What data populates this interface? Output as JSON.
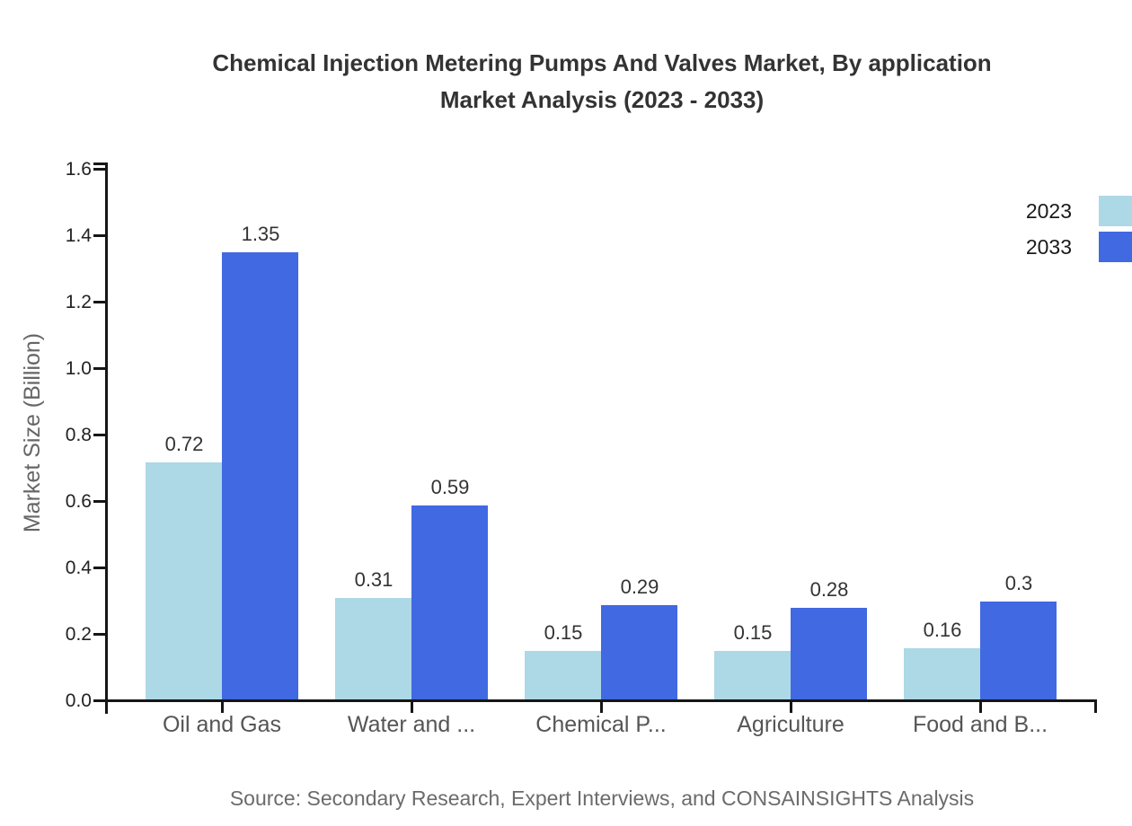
{
  "title": {
    "line1": "Chemical Injection Metering Pumps And Valves Market, By application",
    "line2": "Market Analysis (2023 - 2033)"
  },
  "source": "Source: Secondary Research, Expert Interviews, and CONSAINSIGHTS Analysis",
  "colors": {
    "series_2023": "#add8e6",
    "series_2033": "#4169e1",
    "axis": "#161616",
    "title_text": "#333333",
    "category_text": "#555555",
    "muted_text": "#666666"
  },
  "chart_data": {
    "type": "bar",
    "title": "Chemical Injection Metering Pumps And Valves Market, By application Market Analysis (2023 - 2033)",
    "categories": [
      "Oil and Gas",
      "Water and ...",
      "Chemical P...",
      "Agriculture",
      "Food and B..."
    ],
    "series": [
      {
        "name": "2023",
        "color": "#add8e6",
        "values": [
          0.72,
          0.31,
          0.15,
          0.15,
          0.16
        ]
      },
      {
        "name": "2033",
        "color": "#4169e1",
        "values": [
          1.35,
          0.59,
          0.29,
          0.28,
          0.3
        ]
      }
    ],
    "xlabel": "",
    "ylabel": "Market Size (Billion)",
    "ylim": [
      0,
      1.6
    ],
    "ytick_labels": [
      "0.0",
      "0.2",
      "0.4",
      "0.6",
      "0.8",
      "1.0",
      "1.2",
      "1.4",
      "1.6"
    ],
    "grid": false,
    "bar_value_labels_shown": true,
    "legend_position": "upper-right-outside-swatches-right-of-labels"
  }
}
